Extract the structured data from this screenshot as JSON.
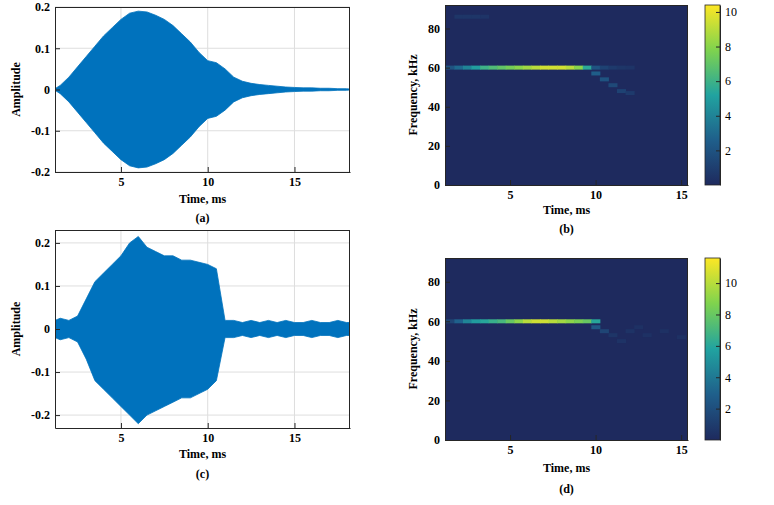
{
  "chart_data": [
    {
      "type": "area",
      "x_label": "Time, ms",
      "y_label": "Amplitude",
      "panel_label": "(a)",
      "color": "#0072bd",
      "grid": true,
      "xlim": [
        1.2,
        18.2
      ],
      "xticks": [
        5,
        10,
        15
      ],
      "ylim": [
        -0.2,
        0.2
      ],
      "yticks": [
        -0.2,
        -0.1,
        0,
        0.1,
        0.2
      ],
      "x": [
        1.2,
        1.5,
        2,
        2.5,
        3,
        3.5,
        4,
        4.5,
        5,
        5.5,
        6,
        6.5,
        7,
        7.5,
        8,
        8.5,
        9,
        9.5,
        10,
        10.5,
        11,
        11.5,
        12,
        12.5,
        13,
        13.5,
        14,
        14.5,
        15,
        15.5,
        16,
        16.5,
        17,
        17.5,
        18,
        18.2
      ],
      "values": [
        0.002,
        0.01,
        0.03,
        0.055,
        0.08,
        0.105,
        0.13,
        0.15,
        0.17,
        0.185,
        0.19,
        0.188,
        0.18,
        0.17,
        0.155,
        0.135,
        0.115,
        0.09,
        0.07,
        0.065,
        0.05,
        0.03,
        0.02,
        0.015,
        0.012,
        0.01,
        0.008,
        0.006,
        0.005,
        0.004,
        0.004,
        0.003,
        0.003,
        0.002,
        0.002,
        0.001
      ],
      "lower": [
        -0.002,
        -0.01,
        -0.03,
        -0.055,
        -0.08,
        -0.105,
        -0.13,
        -0.15,
        -0.17,
        -0.185,
        -0.19,
        -0.188,
        -0.18,
        -0.17,
        -0.155,
        -0.135,
        -0.115,
        -0.09,
        -0.07,
        -0.065,
        -0.05,
        -0.03,
        -0.02,
        -0.015,
        -0.012,
        -0.01,
        -0.008,
        -0.006,
        -0.005,
        -0.004,
        -0.004,
        -0.003,
        -0.003,
        -0.002,
        -0.002,
        -0.001
      ]
    },
    {
      "type": "heatmap",
      "x_label": "Time, ms",
      "y_label": "Frequency, kHz",
      "panel_label": "(b)",
      "grid": false,
      "xlim": [
        1.2,
        15.4
      ],
      "xticks": [
        5,
        10,
        15
      ],
      "ylim": [
        0,
        92
      ],
      "yticks": [
        0,
        20,
        40,
        60,
        80
      ],
      "colorbar": {
        "range": [
          0,
          10.4
        ],
        "ticks": [
          2,
          4,
          6,
          8,
          10
        ]
      },
      "cells": [
        [
          1.5,
          60,
          2
        ],
        [
          2,
          60,
          3
        ],
        [
          2.5,
          60,
          4
        ],
        [
          3,
          60,
          5
        ],
        [
          3.5,
          60,
          6
        ],
        [
          4,
          60,
          6.5
        ],
        [
          4.5,
          60,
          7
        ],
        [
          5,
          60,
          7.5
        ],
        [
          5.5,
          60,
          8
        ],
        [
          6,
          60,
          8.5
        ],
        [
          6.5,
          60,
          9
        ],
        [
          7,
          60,
          9.5
        ],
        [
          7.5,
          60,
          9.5
        ],
        [
          8,
          60,
          9.5
        ],
        [
          8.5,
          60,
          9
        ],
        [
          9,
          60,
          8
        ],
        [
          9.5,
          60,
          5.5
        ],
        [
          10,
          60,
          2
        ],
        [
          10.5,
          60,
          1.2
        ],
        [
          11,
          60,
          0.8
        ],
        [
          11.5,
          60,
          0.6
        ],
        [
          12,
          60,
          0.5
        ],
        [
          10,
          57,
          2.5
        ],
        [
          10.5,
          54,
          2
        ],
        [
          11,
          51,
          1.5
        ],
        [
          11.5,
          48,
          1.2
        ],
        [
          12,
          47,
          0.8
        ],
        [
          2,
          86,
          0.6
        ],
        [
          2.5,
          86,
          0.6
        ],
        [
          3,
          86,
          0.6
        ],
        [
          3.5,
          86,
          0.5
        ]
      ]
    },
    {
      "type": "area",
      "x_label": "Time, ms",
      "y_label": "Amplitude",
      "panel_label": "(c)",
      "color": "#0072bd",
      "grid": true,
      "xlim": [
        1.2,
        18.2
      ],
      "xticks": [
        5,
        10,
        15
      ],
      "ylim": [
        -0.23,
        0.23
      ],
      "yticks": [
        -0.2,
        -0.1,
        0,
        0.1,
        0.2
      ],
      "x": [
        1.2,
        1.5,
        2,
        2.5,
        3,
        3.5,
        4,
        4.5,
        5,
        5.5,
        6,
        6.5,
        7,
        7.5,
        8,
        8.5,
        9,
        9.5,
        10,
        10.5,
        11,
        11.5,
        12,
        12.5,
        13,
        13.5,
        14,
        14.5,
        15,
        15.5,
        16,
        16.5,
        17,
        17.5,
        18,
        18.2
      ],
      "values": [
        0.02,
        0.025,
        0.02,
        0.03,
        0.07,
        0.11,
        0.13,
        0.15,
        0.17,
        0.2,
        0.215,
        0.19,
        0.18,
        0.17,
        0.17,
        0.16,
        0.16,
        0.155,
        0.15,
        0.14,
        0.02,
        0.02,
        0.015,
        0.02,
        0.015,
        0.02,
        0.015,
        0.02,
        0.015,
        0.015,
        0.02,
        0.015,
        0.015,
        0.02,
        0.015,
        0.015
      ],
      "lower": [
        -0.02,
        -0.025,
        -0.02,
        -0.03,
        -0.07,
        -0.12,
        -0.14,
        -0.16,
        -0.18,
        -0.2,
        -0.22,
        -0.2,
        -0.19,
        -0.18,
        -0.17,
        -0.16,
        -0.16,
        -0.15,
        -0.14,
        -0.12,
        -0.02,
        -0.02,
        -0.015,
        -0.02,
        -0.015,
        -0.02,
        -0.015,
        -0.02,
        -0.015,
        -0.015,
        -0.02,
        -0.015,
        -0.015,
        -0.02,
        -0.015,
        -0.015
      ]
    },
    {
      "type": "heatmap",
      "x_label": "Time, ms",
      "y_label": "Frequency, kHz",
      "panel_label": "(d)",
      "grid": false,
      "xlim": [
        1.2,
        15.4
      ],
      "xticks": [
        5,
        10,
        15
      ],
      "ylim": [
        0,
        92
      ],
      "yticks": [
        0,
        20,
        40,
        60,
        80
      ],
      "colorbar": {
        "range": [
          0,
          11.6
        ],
        "ticks": [
          2,
          4,
          6,
          8,
          10
        ]
      },
      "cells": [
        [
          1.5,
          60,
          1.5
        ],
        [
          2,
          60,
          3
        ],
        [
          2.5,
          60,
          4.5
        ],
        [
          3,
          60,
          5.5
        ],
        [
          3.5,
          60,
          6
        ],
        [
          4,
          60,
          6.5
        ],
        [
          4.5,
          60,
          7
        ],
        [
          5,
          60,
          8
        ],
        [
          5.5,
          60,
          9
        ],
        [
          6,
          60,
          10
        ],
        [
          6.5,
          60,
          10.5
        ],
        [
          7,
          60,
          10.5
        ],
        [
          7.5,
          60,
          10
        ],
        [
          8,
          60,
          9.5
        ],
        [
          8.5,
          60,
          9
        ],
        [
          9,
          60,
          8.5
        ],
        [
          9.5,
          60,
          8
        ],
        [
          10,
          60,
          6
        ],
        [
          10,
          57,
          2.5
        ],
        [
          10.5,
          55,
          1.5
        ],
        [
          11,
          53,
          0.6
        ],
        [
          11.5,
          50,
          0.5
        ],
        [
          12,
          55,
          0.5
        ],
        [
          12.5,
          57,
          0.4
        ],
        [
          13,
          53,
          0.4
        ],
        [
          14,
          55,
          0.4
        ],
        [
          15,
          52,
          0.4
        ]
      ]
    }
  ]
}
